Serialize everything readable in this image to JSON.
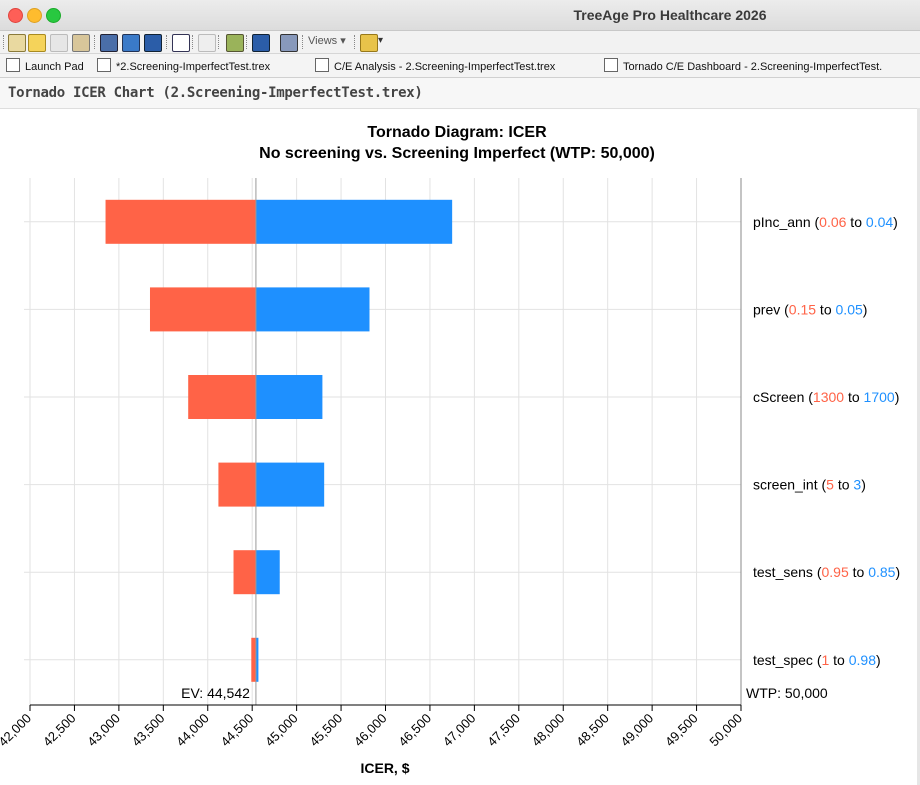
{
  "window": {
    "title": "TreeAge Pro Healthcare 2026"
  },
  "toolbar": {
    "views_label": "Views"
  },
  "tabs": [
    {
      "label": "Launch Pad"
    },
    {
      "label": "*2.Screening-ImperfectTest.trex"
    },
    {
      "label": "C/E Analysis - 2.Screening-ImperfectTest.trex"
    },
    {
      "label": "Tornado C/E Dashboard - 2.Screening-ImperfectTest."
    }
  ],
  "panel": {
    "title": "Tornado ICER Chart (2.Screening-ImperfectTest.trex)"
  },
  "colors": {
    "low": "#ff6347",
    "high": "#1e90ff"
  },
  "chart_data": {
    "type": "bar",
    "orientation": "horizontal",
    "title": "Tornado Diagram: ICER",
    "subtitle": "No screening vs. Screening Imperfect (WTP: 50,000)",
    "xlabel": "ICER, $",
    "xlim": [
      42000,
      50000
    ],
    "xticks": [
      42000,
      42500,
      43000,
      43500,
      44000,
      44500,
      45000,
      45500,
      46000,
      46500,
      47000,
      47500,
      48000,
      48500,
      49000,
      49500,
      50000
    ],
    "xtick_labels": [
      "42,000",
      "42,500",
      "43,000",
      "43,500",
      "44,000",
      "44,500",
      "45,000",
      "45,500",
      "46,000",
      "46,500",
      "47,000",
      "47,500",
      "48,000",
      "48,500",
      "49,000",
      "49,500",
      "50,000"
    ],
    "ev": 44542,
    "ev_label": "EV: 44,542",
    "wtp": 50000,
    "wtp_label": "WTP: 50,000",
    "grid": true,
    "variables": [
      {
        "name": "pInc_ann",
        "label": "pInc_ann",
        "low_input": "0.06",
        "high_input": "0.04",
        "low_icer": 42850,
        "high_icer": 46750
      },
      {
        "name": "prev",
        "label": "prev",
        "low_input": "0.15",
        "high_input": "0.05",
        "low_icer": 43350,
        "high_icer": 45820
      },
      {
        "name": "cScreen",
        "label": "cScreen",
        "low_input": "1300",
        "high_input": "1700",
        "low_icer": 43780,
        "high_icer": 45290
      },
      {
        "name": "screen_int",
        "label": "screen_int",
        "low_input": "5",
        "high_input": "3",
        "low_icer": 44120,
        "high_icer": 45310
      },
      {
        "name": "test_sens",
        "label": "test_sens",
        "low_input": "0.95",
        "high_input": "0.85",
        "low_icer": 44290,
        "high_icer": 44810
      },
      {
        "name": "test_spec",
        "label": "test_spec",
        "low_input": "1",
        "high_input": "0.98",
        "low_icer": 44490,
        "high_icer": 44570
      }
    ]
  }
}
